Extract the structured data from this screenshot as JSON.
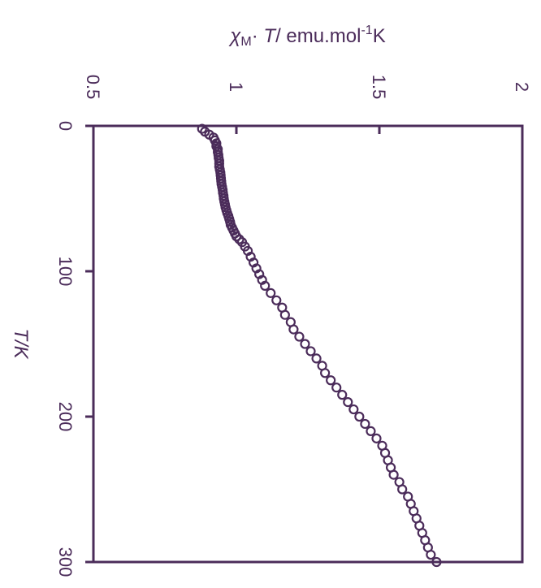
{
  "chart_data": {
    "type": "scatter",
    "orientation": "rotated-90",
    "x_axis": {
      "label_chi": "χ",
      "label_sub": "M",
      "label_T": "T",
      "label_rest": "/ emu.mol",
      "label_sup": "-1",
      "label_end": "K",
      "range": [
        0.5,
        2
      ],
      "ticks": [
        0.5,
        1,
        1.5,
        2
      ],
      "tick_labels": [
        "0.5",
        "1",
        "1.5",
        "2"
      ]
    },
    "y_axis": {
      "label": "T/K",
      "range": [
        0,
        300
      ],
      "ticks": [
        0,
        100,
        200,
        300
      ],
      "tick_labels": [
        "0",
        "100",
        "200",
        "300"
      ]
    },
    "grid": false,
    "color": "#4b2c5a",
    "series": [
      {
        "points": [
          [
            0.88,
            2
          ],
          [
            0.89,
            4
          ],
          [
            0.905,
            6
          ],
          [
            0.92,
            8
          ],
          [
            0.925,
            10
          ],
          [
            0.93,
            12
          ],
          [
            0.93,
            14
          ],
          [
            0.935,
            16
          ],
          [
            0.935,
            18
          ],
          [
            0.937,
            20
          ],
          [
            0.938,
            22
          ],
          [
            0.94,
            24
          ],
          [
            0.94,
            26
          ],
          [
            0.94,
            28
          ],
          [
            0.942,
            30
          ],
          [
            0.944,
            32
          ],
          [
            0.945,
            34
          ],
          [
            0.946,
            36
          ],
          [
            0.947,
            38
          ],
          [
            0.948,
            40
          ],
          [
            0.95,
            42
          ],
          [
            0.952,
            44
          ],
          [
            0.953,
            46
          ],
          [
            0.955,
            48
          ],
          [
            0.956,
            50
          ],
          [
            0.958,
            52
          ],
          [
            0.96,
            54
          ],
          [
            0.962,
            56
          ],
          [
            0.965,
            58
          ],
          [
            0.968,
            60
          ],
          [
            0.972,
            62
          ],
          [
            0.975,
            64
          ],
          [
            0.978,
            66
          ],
          [
            0.98,
            68
          ],
          [
            0.985,
            70
          ],
          [
            0.99,
            72
          ],
          [
            0.995,
            74
          ],
          [
            1.0,
            76
          ],
          [
            1.01,
            78
          ],
          [
            1.02,
            80
          ],
          [
            1.03,
            83
          ],
          [
            1.04,
            86
          ],
          [
            1.05,
            90
          ],
          [
            1.06,
            94
          ],
          [
            1.07,
            98
          ],
          [
            1.08,
            102
          ],
          [
            1.09,
            106
          ],
          [
            1.1,
            110
          ],
          [
            1.12,
            115
          ],
          [
            1.14,
            120
          ],
          [
            1.16,
            125
          ],
          [
            1.17,
            130
          ],
          [
            1.19,
            135
          ],
          [
            1.2,
            140
          ],
          [
            1.22,
            145
          ],
          [
            1.24,
            150
          ],
          [
            1.26,
            155
          ],
          [
            1.28,
            160
          ],
          [
            1.3,
            165
          ],
          [
            1.31,
            170
          ],
          [
            1.33,
            175
          ],
          [
            1.35,
            180
          ],
          [
            1.37,
            185
          ],
          [
            1.39,
            190
          ],
          [
            1.41,
            195
          ],
          [
            1.43,
            200
          ],
          [
            1.45,
            205
          ],
          [
            1.47,
            210
          ],
          [
            1.49,
            215
          ],
          [
            1.51,
            220
          ],
          [
            1.52,
            225
          ],
          [
            1.53,
            230
          ],
          [
            1.54,
            235
          ],
          [
            1.55,
            240
          ],
          [
            1.57,
            245
          ],
          [
            1.58,
            250
          ],
          [
            1.6,
            255
          ],
          [
            1.61,
            260
          ],
          [
            1.62,
            265
          ],
          [
            1.63,
            270
          ],
          [
            1.64,
            275
          ],
          [
            1.65,
            280
          ],
          [
            1.66,
            285
          ],
          [
            1.67,
            290
          ],
          [
            1.68,
            295
          ],
          [
            1.7,
            300
          ]
        ]
      }
    ]
  }
}
